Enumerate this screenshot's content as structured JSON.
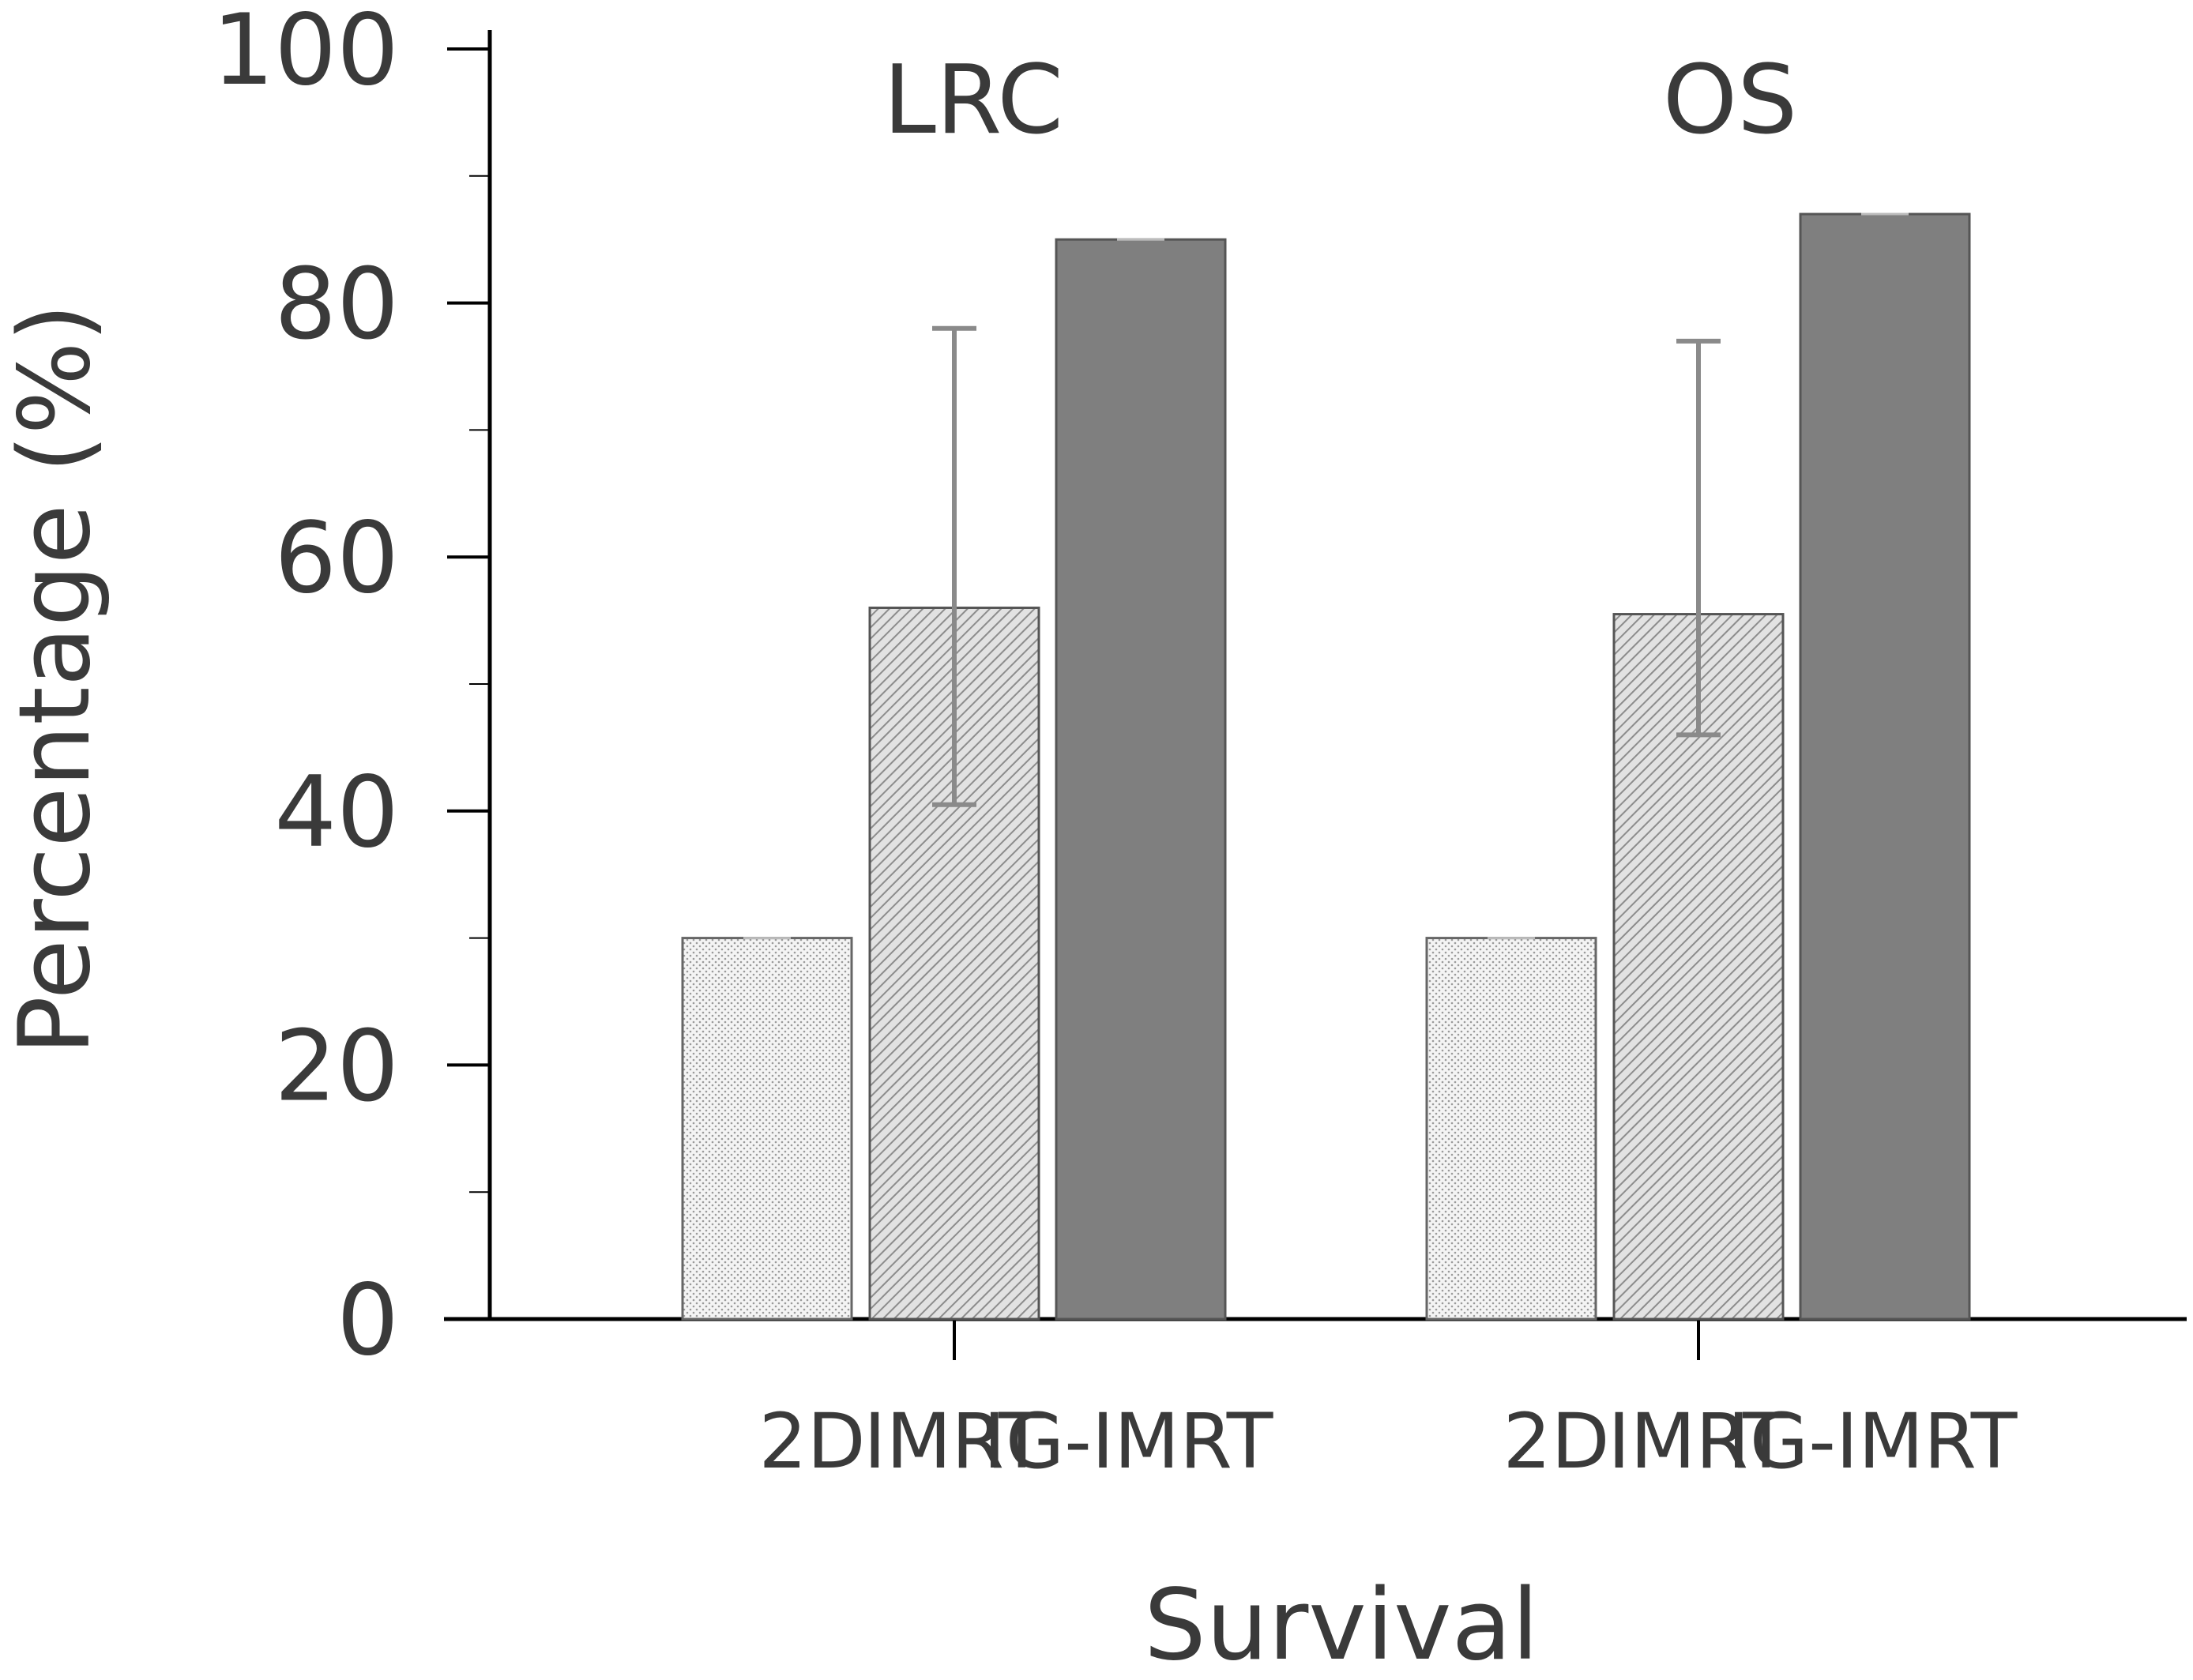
{
  "chart_data": {
    "type": "bar",
    "title": "",
    "xlabel": "Survival",
    "ylabel": "Percentage (%)",
    "ylim": [
      0,
      100
    ],
    "yticks": [
      0,
      20,
      40,
      60,
      80,
      100
    ],
    "grid": false,
    "legend": "none",
    "groups": [
      {
        "name": "LRC",
        "bars": [
          {
            "category": "2D",
            "value": 30
          },
          {
            "category": "IMRT",
            "value": 56,
            "error_low": 40.5,
            "error_high": 78
          },
          {
            "category": "IG-IMRT",
            "value": 85
          }
        ]
      },
      {
        "name": "OS",
        "bars": [
          {
            "category": "2D",
            "value": 30
          },
          {
            "category": "IMRT",
            "value": 55.5,
            "error_low": 46,
            "error_high": 77
          },
          {
            "category": "IG-IMRT",
            "value": 87
          }
        ]
      }
    ],
    "series_styles": {
      "2D": {
        "fill": "#f2f2f2",
        "pattern": "dots",
        "stroke": "#666666"
      },
      "IMRT": {
        "fill": "#dcdcdc",
        "pattern": "diagonal-hatch",
        "stroke": "#555555"
      },
      "IG-IMRT": {
        "fill": "#7f7f7f",
        "pattern": "solid",
        "stroke": "#555555"
      }
    },
    "error_bar_color": "#8a8a8a",
    "axis_color": "#000000"
  }
}
